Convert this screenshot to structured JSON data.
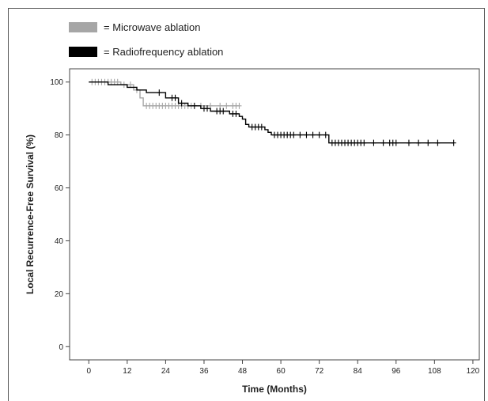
{
  "legend": [
    {
      "label": "= Microwave ablation",
      "color": "#a6a6a6"
    },
    {
      "label": "= Radiofrequency ablation",
      "color": "#000000"
    }
  ],
  "chart_data": {
    "type": "line",
    "title": "",
    "xlabel": "Time (Months)",
    "ylabel": "Local Recurrence-Free Survival (%)",
    "xlim": [
      -6,
      122
    ],
    "ylim": [
      -5,
      105
    ],
    "xticks": [
      0,
      12,
      24,
      36,
      48,
      60,
      72,
      84,
      96,
      108,
      120
    ],
    "yticks": [
      0,
      20,
      40,
      60,
      80,
      100
    ],
    "grid": false,
    "legend_position": "top-left, outside plot",
    "series": [
      {
        "name": "Microwave ablation",
        "color": "#a6a6a6",
        "step": [
          [
            0,
            100
          ],
          [
            10,
            100
          ],
          [
            10,
            99
          ],
          [
            14,
            99
          ],
          [
            14,
            97
          ],
          [
            16,
            97
          ],
          [
            16,
            94
          ],
          [
            17,
            94
          ],
          [
            17,
            91
          ],
          [
            47,
            91
          ]
        ],
        "censored": [
          [
            1,
            100
          ],
          [
            2,
            100
          ],
          [
            3,
            100
          ],
          [
            4,
            100
          ],
          [
            5,
            100
          ],
          [
            6,
            100
          ],
          [
            7,
            100
          ],
          [
            8,
            100
          ],
          [
            9,
            100
          ],
          [
            11,
            99
          ],
          [
            13,
            99
          ],
          [
            15,
            97
          ],
          [
            18,
            91
          ],
          [
            19,
            91
          ],
          [
            20,
            91
          ],
          [
            21,
            91
          ],
          [
            22,
            91
          ],
          [
            23,
            91
          ],
          [
            24,
            91
          ],
          [
            25,
            91
          ],
          [
            26,
            91
          ],
          [
            27,
            91
          ],
          [
            28,
            91
          ],
          [
            29,
            91
          ],
          [
            30,
            91
          ],
          [
            31,
            91
          ],
          [
            32,
            91
          ],
          [
            35,
            91
          ],
          [
            38,
            91
          ],
          [
            41,
            91
          ],
          [
            43,
            91
          ],
          [
            45,
            91
          ],
          [
            46,
            91
          ],
          [
            47,
            91
          ]
        ]
      },
      {
        "name": "Radiofrequency ablation",
        "color": "#000000",
        "step": [
          [
            0,
            100
          ],
          [
            6,
            100
          ],
          [
            6,
            99
          ],
          [
            12,
            99
          ],
          [
            12,
            98
          ],
          [
            15,
            98
          ],
          [
            15,
            97
          ],
          [
            18,
            97
          ],
          [
            18,
            96
          ],
          [
            24,
            96
          ],
          [
            24,
            94
          ],
          [
            28,
            94
          ],
          [
            28,
            92
          ],
          [
            31,
            92
          ],
          [
            31,
            91
          ],
          [
            35,
            91
          ],
          [
            35,
            90
          ],
          [
            38,
            90
          ],
          [
            38,
            89
          ],
          [
            44,
            89
          ],
          [
            44,
            88
          ],
          [
            47,
            88
          ],
          [
            47,
            87
          ],
          [
            48,
            87
          ],
          [
            48,
            86
          ],
          [
            49,
            86
          ],
          [
            49,
            84
          ],
          [
            50,
            84
          ],
          [
            50,
            83
          ],
          [
            55,
            83
          ],
          [
            55,
            82
          ],
          [
            56,
            82
          ],
          [
            56,
            81
          ],
          [
            57,
            81
          ],
          [
            57,
            80
          ],
          [
            75,
            80
          ],
          [
            75,
            77
          ],
          [
            114,
            77
          ]
        ],
        "censored": [
          [
            22,
            96
          ],
          [
            26,
            94
          ],
          [
            27,
            94
          ],
          [
            29,
            92
          ],
          [
            33,
            91
          ],
          [
            36,
            90
          ],
          [
            37,
            90
          ],
          [
            40,
            89
          ],
          [
            41,
            89
          ],
          [
            42,
            89
          ],
          [
            45,
            88
          ],
          [
            46,
            88
          ],
          [
            51,
            83
          ],
          [
            52,
            83
          ],
          [
            53,
            83
          ],
          [
            54,
            83
          ],
          [
            58,
            80
          ],
          [
            59,
            80
          ],
          [
            60,
            80
          ],
          [
            61,
            80
          ],
          [
            62,
            80
          ],
          [
            63,
            80
          ],
          [
            64,
            80
          ],
          [
            66,
            80
          ],
          [
            68,
            80
          ],
          [
            70,
            80
          ],
          [
            72,
            80
          ],
          [
            74,
            80
          ],
          [
            76,
            77
          ],
          [
            77,
            77
          ],
          [
            78,
            77
          ],
          [
            79,
            77
          ],
          [
            80,
            77
          ],
          [
            81,
            77
          ],
          [
            82,
            77
          ],
          [
            83,
            77
          ],
          [
            84,
            77
          ],
          [
            85,
            77
          ],
          [
            86,
            77
          ],
          [
            89,
            77
          ],
          [
            92,
            77
          ],
          [
            94,
            77
          ],
          [
            95,
            77
          ],
          [
            96,
            77
          ],
          [
            100,
            77
          ],
          [
            103,
            77
          ],
          [
            106,
            77
          ],
          [
            109,
            77
          ],
          [
            114,
            77
          ]
        ]
      }
    ]
  }
}
